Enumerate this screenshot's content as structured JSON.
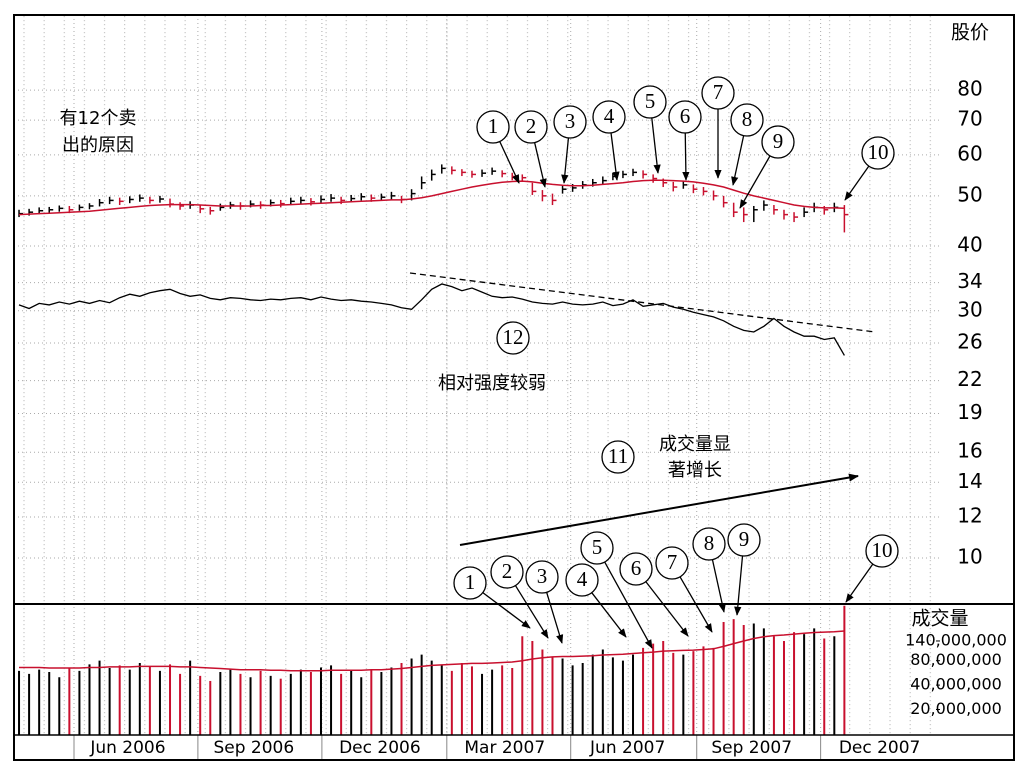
{
  "chart_data": {
    "type": "ohlc",
    "price_label": "股价",
    "volume_label": "成交量",
    "categories": [
      null,
      null,
      null,
      null,
      null,
      null,
      null,
      null,
      null,
      null,
      null,
      null,
      null,
      null,
      null,
      null,
      null,
      null,
      null,
      null,
      null,
      null,
      null,
      null,
      null,
      null,
      null,
      null,
      null,
      null,
      null,
      null,
      null,
      null,
      null,
      null,
      null,
      null,
      null,
      null,
      null,
      null,
      null,
      null,
      null,
      null,
      null,
      null,
      null,
      null,
      null,
      null,
      null,
      null,
      null,
      null,
      null,
      null,
      null,
      null,
      null,
      null,
      null,
      null,
      null,
      null,
      null,
      null,
      null,
      null,
      null,
      null,
      null,
      null,
      null,
      null,
      null,
      null,
      null,
      null,
      null,
      null,
      null
    ],
    "high": [
      47.0,
      47.2,
      47.5,
      47.6,
      47.9,
      47.8,
      48.1,
      48.4,
      49.3,
      49.8,
      49.6,
      49.9,
      50.3,
      49.8,
      50.0,
      49.4,
      48.6,
      48.8,
      48.0,
      47.6,
      48.3,
      48.7,
      48.6,
      49.0,
      48.8,
      49.2,
      49.1,
      49.6,
      49.8,
      49.5,
      50.1,
      50.4,
      49.8,
      50.2,
      50.6,
      50.3,
      50.5,
      50.9,
      50.0,
      51.5,
      54.5,
      56.2,
      57.5,
      57.0,
      56.3,
      55.9,
      56.2,
      56.7,
      56.0,
      55.4,
      55.0,
      53.0,
      51.3,
      50.5,
      52.4,
      52.7,
      53.4,
      53.9,
      54.5,
      55.4,
      55.9,
      56.4,
      56.0,
      55.0,
      54.0,
      53.2,
      53.4,
      52.6,
      52.0,
      51.2,
      50.0,
      48.5,
      47.5,
      47.8,
      49.0,
      48.0,
      47.0,
      46.5,
      47.5,
      48.5,
      47.8,
      48.5,
      48.0
    ],
    "low": [
      45.5,
      45.8,
      46.1,
      46.3,
      46.6,
      46.3,
      46.8,
      47.1,
      47.7,
      48.2,
      48.0,
      48.4,
      48.7,
      48.3,
      48.5,
      47.5,
      47.0,
      47.2,
      46.3,
      46.0,
      46.8,
      47.2,
      47.0,
      47.5,
      47.2,
      47.7,
      47.5,
      48.0,
      48.3,
      47.9,
      48.4,
      48.7,
      48.2,
      48.6,
      49.0,
      48.7,
      48.9,
      49.2,
      48.4,
      49.0,
      51.5,
      53.5,
      55.2,
      55.0,
      54.6,
      54.2,
      54.4,
      54.9,
      54.3,
      53.6,
      53.2,
      50.2,
      48.8,
      48.0,
      50.5,
      50.9,
      51.6,
      52.1,
      52.6,
      53.6,
      54.1,
      54.6,
      54.0,
      53.0,
      52.0,
      51.0,
      51.6,
      50.6,
      50.1,
      49.0,
      47.5,
      45.5,
      44.5,
      44.5,
      46.8,
      46.0,
      45.0,
      44.5,
      45.5,
      46.5,
      46.0,
      46.5,
      42.5
    ],
    "close": [
      46.2,
      46.5,
      46.8,
      47.0,
      47.3,
      47.0,
      47.5,
      47.8,
      48.5,
      49.0,
      48.8,
      49.2,
      49.5,
      49.0,
      49.3,
      48.2,
      47.8,
      48.0,
      47.2,
      46.8,
      47.5,
      48.0,
      47.8,
      48.2,
      48.0,
      48.5,
      48.3,
      48.8,
      49.0,
      48.7,
      49.2,
      49.5,
      49.0,
      49.4,
      49.8,
      49.5,
      49.7,
      50.0,
      49.2,
      50.5,
      53.0,
      55.0,
      56.5,
      56.0,
      55.5,
      55.0,
      55.3,
      55.8,
      55.2,
      54.5,
      54.2,
      51.0,
      50.0,
      49.0,
      51.5,
      51.8,
      52.5,
      53.0,
      53.5,
      54.5,
      55.0,
      55.5,
      55.0,
      54.0,
      53.0,
      52.0,
      52.5,
      51.5,
      51.0,
      50.0,
      48.5,
      46.5,
      46.0,
      47.0,
      48.0,
      47.0,
      46.0,
      45.5,
      46.5,
      47.5,
      47.0,
      47.5,
      46.0
    ],
    "up_color": "#000000",
    "down_color": "#c8102e",
    "moving_average": {
      "color": "#c8102e",
      "values": [
        46.0,
        46.1,
        46.2,
        46.3,
        46.4,
        46.5,
        46.6,
        46.7,
        46.9,
        47.1,
        47.3,
        47.5,
        47.7,
        47.9,
        48.0,
        48.1,
        48.1,
        48.1,
        48.0,
        47.9,
        47.8,
        47.8,
        47.8,
        47.8,
        47.9,
        47.9,
        48.0,
        48.1,
        48.2,
        48.3,
        48.4,
        48.5,
        48.6,
        48.7,
        48.8,
        48.9,
        49.0,
        49.1,
        49.1,
        49.3,
        49.6,
        50.0,
        50.5,
        51.0,
        51.5,
        52.0,
        52.4,
        52.8,
        53.1,
        53.3,
        53.4,
        53.2,
        52.9,
        52.6,
        52.4,
        52.3,
        52.3,
        52.4,
        52.6,
        52.8,
        53.0,
        53.3,
        53.5,
        53.6,
        53.6,
        53.5,
        53.4,
        53.2,
        52.9,
        52.5,
        52.0,
        51.3,
        50.6,
        50.0,
        49.5,
        49.0,
        48.5,
        48.0,
        47.7,
        47.5,
        47.4,
        47.4,
        47.3
      ]
    },
    "relative_strength": {
      "color": "#000000",
      "values": [
        30.8,
        30.3,
        31.0,
        30.8,
        31.2,
        30.9,
        31.3,
        31.0,
        31.4,
        31.1,
        31.8,
        32.3,
        32.0,
        32.5,
        32.8,
        33.0,
        32.4,
        32.0,
        32.2,
        31.7,
        31.5,
        31.8,
        31.7,
        31.5,
        31.4,
        31.6,
        31.5,
        31.7,
        31.8,
        31.5,
        31.9,
        31.6,
        31.4,
        31.5,
        31.3,
        31.2,
        31.0,
        30.8,
        30.4,
        30.2,
        31.5,
        33.0,
        33.8,
        33.4,
        32.8,
        33.2,
        32.6,
        32.0,
        31.8,
        31.9,
        31.6,
        31.2,
        31.0,
        30.9,
        31.2,
        30.9,
        30.8,
        30.9,
        31.2,
        30.7,
        30.9,
        31.5,
        30.6,
        30.8,
        31.0,
        30.5,
        30.2,
        29.8,
        29.5,
        29.2,
        28.7,
        28.0,
        27.5,
        27.3,
        28.0,
        29.0,
        28.0,
        27.3,
        26.8,
        26.8,
        26.4,
        26.6,
        24.6
      ]
    },
    "ylim": [
      8.15,
      111.7
    ],
    "log_scale": true,
    "yticks": [
      80,
      70,
      60,
      50,
      40,
      34,
      30,
      26,
      22,
      19,
      16,
      14,
      12,
      10
    ],
    "grid": true,
    "xlim": [
      -0.5,
      91.5
    ],
    "xticks": [
      5.46,
      17.77,
      30.09,
      42.5,
      54.81,
      67.33,
      79.64
    ],
    "xtick_labels": [
      {
        "value": 10.82,
        "label": "Jun 2006"
      },
      {
        "value": 23.33,
        "label": "Sep 2006"
      },
      {
        "value": 35.85,
        "label": "Dec 2006"
      },
      {
        "value": 48.26,
        "label": "Mar 2007"
      },
      {
        "value": 60.47,
        "label": "Jun 2007"
      },
      {
        "value": 72.79,
        "label": "Sep 2007"
      },
      {
        "value": 85.5,
        "label": "Dec 2007"
      }
    ],
    "volume": {
      "values": [
        60000000,
        55000000,
        62000000,
        58000000,
        50000000,
        66000000,
        60000000,
        72000000,
        80000000,
        65000000,
        70000000,
        62000000,
        75000000,
        68000000,
        60000000,
        72000000,
        55000000,
        80000000,
        52000000,
        45000000,
        58000000,
        62000000,
        55000000,
        50000000,
        60000000,
        52000000,
        48000000,
        55000000,
        62000000,
        58000000,
        66000000,
        70000000,
        55000000,
        60000000,
        50000000,
        62000000,
        58000000,
        66000000,
        75000000,
        85000000,
        95000000,
        80000000,
        70000000,
        60000000,
        75000000,
        68000000,
        55000000,
        62000000,
        70000000,
        65000000,
        160000000,
        140000000,
        110000000,
        90000000,
        85000000,
        70000000,
        75000000,
        95000000,
        110000000,
        88000000,
        80000000,
        95000000,
        115000000,
        130000000,
        140000000,
        100000000,
        95000000,
        105000000,
        120000000,
        115000000,
        240000000,
        260000000,
        220000000,
        230000000,
        200000000,
        160000000,
        140000000,
        180000000,
        170000000,
        200000000,
        150000000,
        160000000,
        380000000
      ],
      "moving_average": {
        "color": "#c8102e",
        "values": [
          66000000,
          66000000,
          66000000,
          65000000,
          65000000,
          65000000,
          65000000,
          66000000,
          66000000,
          67000000,
          67000000,
          67000000,
          68000000,
          68000000,
          68000000,
          68000000,
          67000000,
          67000000,
          66000000,
          65000000,
          64000000,
          63000000,
          62000000,
          62000000,
          62000000,
          61000000,
          61000000,
          60000000,
          60000000,
          60000000,
          60000000,
          61000000,
          61000000,
          61000000,
          61000000,
          62000000,
          62000000,
          63000000,
          64000000,
          66000000,
          68000000,
          70000000,
          71000000,
          72000000,
          73000000,
          74000000,
          74000000,
          75000000,
          76000000,
          77000000,
          80000000,
          84000000,
          87000000,
          89000000,
          90000000,
          90000000,
          91000000,
          92000000,
          94000000,
          95000000,
          96000000,
          98000000,
          100000000,
          102000000,
          105000000,
          106000000,
          107000000,
          108000000,
          110000000,
          112000000,
          120000000,
          130000000,
          140000000,
          150000000,
          158000000,
          163000000,
          166000000,
          170000000,
          174000000,
          178000000,
          180000000,
          182000000,
          186000000
        ]
      },
      "ylim": [
        9700000,
        400000000
      ],
      "log_scale": true,
      "yticks": [
        {
          "value": 140000000,
          "label": "140,000,000"
        },
        {
          "value": 80000000,
          "label": "80,000,000"
        },
        {
          "value": 40000000,
          "label": "40,000,000"
        },
        {
          "value": 20000000,
          "label": "20,000,000"
        }
      ]
    },
    "annotations": {
      "sell_reasons": [
        "有12个卖",
        "出的原因"
      ],
      "weak_rs": "相对强度较弱",
      "volume_growth": [
        "成交量显",
        "著增长"
      ],
      "price_callouts": [
        "1",
        "2",
        "3",
        "4",
        "5",
        "6",
        "7",
        "8",
        "9",
        "10"
      ],
      "volume_callouts": [
        "1",
        "2",
        "3",
        "4",
        "5",
        "6",
        "7",
        "8",
        "9",
        "10"
      ],
      "callout_11": "11",
      "callout_12": "12"
    }
  }
}
